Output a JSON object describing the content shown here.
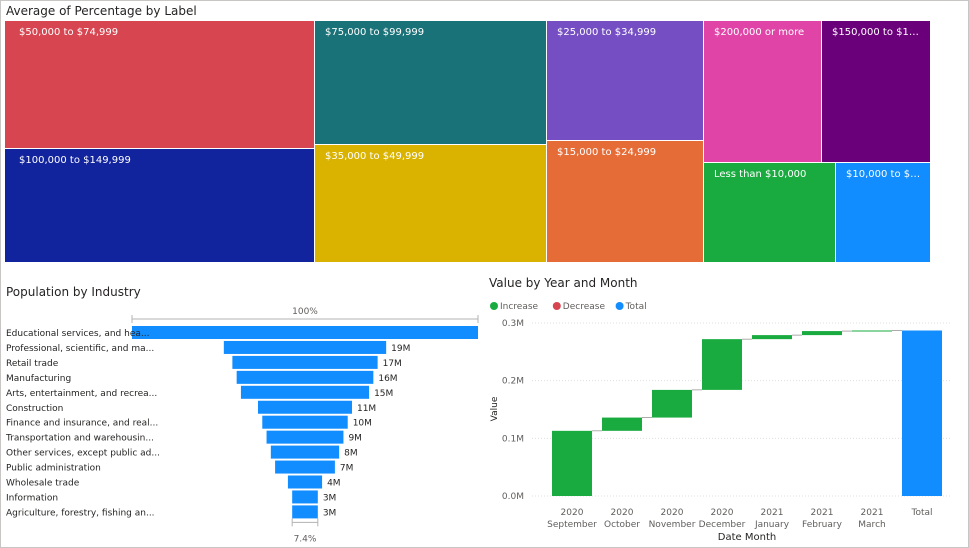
{
  "treemap": {
    "title": "Average of Percentage by Label",
    "cells": [
      {
        "label": "$50,000 to $74,999",
        "color": "#D64550"
      },
      {
        "label": "$100,000 to $149,999",
        "color": "#12239E"
      },
      {
        "label": "$75,000 to $99,999",
        "color": "#197278"
      },
      {
        "label": "$35,000 to $49,999",
        "color": "#D9B300"
      },
      {
        "label": "$25,000 to $34,999",
        "color": "#744EC2"
      },
      {
        "label": "$15,000 to $24,999",
        "color": "#E66C37"
      },
      {
        "label": "$200,000 or more",
        "color": "#E044A7"
      },
      {
        "label": "$150,000 to $199,...",
        "color": "#6B007B"
      },
      {
        "label": "Less than $10,000",
        "color": "#1AAB40"
      },
      {
        "label": "$10,000 to $14...",
        "color": "#118DFF"
      }
    ]
  },
  "chart_data": [
    {
      "type": "bar",
      "subtype": "funnel",
      "title": "Population by Industry",
      "top_label": "100%",
      "bottom_label": "7.4%",
      "color": "#118DFF",
      "categories": [
        "Educational services, and hea...",
        "Professional, scientific, and ma...",
        "Retail trade",
        "Manufacturing",
        "Arts, entertainment, and recrea...",
        "Construction",
        "Finance and insurance, and real...",
        "Transportation and warehousin...",
        "Other services, except public ad...",
        "Public administration",
        "Wholesale trade",
        "Information",
        "Agriculture, forestry, fishing an..."
      ],
      "values": [
        40.5,
        19,
        17,
        16,
        15,
        11,
        10,
        9,
        8,
        7,
        4,
        3,
        3
      ],
      "value_labels": [
        "",
        "19M",
        "17M",
        "16M",
        "15M",
        "11M",
        "10M",
        "9M",
        "8M",
        "7M",
        "4M",
        "3M",
        "3M"
      ]
    },
    {
      "type": "bar",
      "subtype": "waterfall",
      "title": "Value by Year and Month",
      "xlabel": "Date Month",
      "ylabel": "Value",
      "ylim": [
        0,
        0.3
      ],
      "yticks": [
        "0.0M",
        "0.1M",
        "0.2M",
        "0.3M"
      ],
      "legend": [
        {
          "name": "Increase",
          "color": "#1AAB40"
        },
        {
          "name": "Decrease",
          "color": "#D64550"
        },
        {
          "name": "Total",
          "color": "#118DFF"
        }
      ],
      "categories": [
        {
          "year": "2020",
          "month": "September"
        },
        {
          "year": "2020",
          "month": "October"
        },
        {
          "year": "2020",
          "month": "November"
        },
        {
          "year": "2020",
          "month": "December"
        },
        {
          "year": "2021",
          "month": "January"
        },
        {
          "year": "2021",
          "month": "February"
        },
        {
          "year": "2021",
          "month": "March"
        },
        {
          "year": "",
          "month": "Total"
        }
      ],
      "values": [
        0.113,
        0.023,
        0.048,
        0.088,
        0.007,
        0.007,
        0.001,
        0.287
      ],
      "kinds": [
        "increase",
        "increase",
        "increase",
        "increase",
        "increase",
        "increase",
        "increase",
        "total"
      ]
    }
  ]
}
